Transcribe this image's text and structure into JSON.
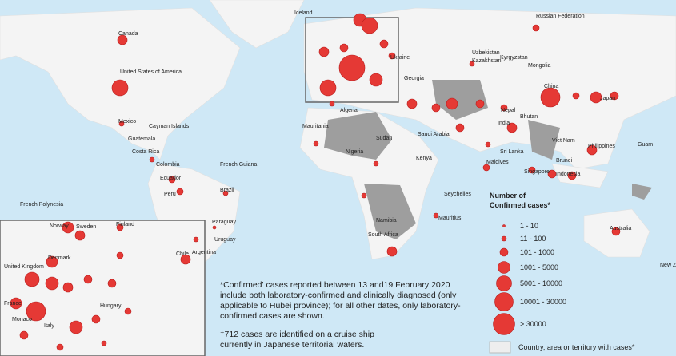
{
  "map": {
    "labels": [
      "Iceland",
      "Canada",
      "United States of America",
      "Mexico",
      "Cayman Islands",
      "Guatemala",
      "Costa Rica",
      "Colombia",
      "Ecuador",
      "Peru",
      "Brazil",
      "Chile",
      "Argentina",
      "Uruguay",
      "Paraguay",
      "French Guiana",
      "French Polynesia",
      "Russian Federation",
      "Kazakhstan",
      "Mongolia",
      "China",
      "Japan",
      "India",
      "Sri Lanka",
      "Maldives",
      "Philippines",
      "Singapore",
      "Indonesia",
      "Australia",
      "Guam",
      "Algeria",
      "Sudan",
      "Mauritania",
      "Nigeria",
      "Kenya",
      "Namibia",
      "South Africa",
      "Mauritius",
      "Seychelles",
      "Saudi Arabia",
      "Nepal",
      "Bhutan",
      "Viet Nam",
      "Brunei",
      "Uzbekistan",
      "Kyrgyzstan",
      "Georgia",
      "Ukraine",
      "Norway",
      "Sweden",
      "Finland",
      "United Kingdom",
      "Denmark",
      "France",
      "Monaco",
      "Italy",
      "Hungary",
      "New Z"
    ],
    "legend": {
      "title_lines": [
        "Number of",
        "Confirmed cases*"
      ],
      "items": [
        "1 - 10",
        "11 - 100",
        "101 - 1000",
        "1001 - 5000",
        "5001 - 10000",
        "10001 - 30000",
        "> 30000"
      ],
      "territory": "Country, area or territory with cases*"
    },
    "notes": [
      [
        "*Confirmed' cases reported between 13 and19 February 2020",
        "include both laboratory-confirmed and clinically diagnosed (only",
        "applicable to Hubei province); for all other dates, only laboratory-",
        "confirmed cases are shown."
      ],
      [
        "⁺712 cases are identified on a cruise ship",
        "currently in Japanese territorial waters."
      ]
    ]
  }
}
